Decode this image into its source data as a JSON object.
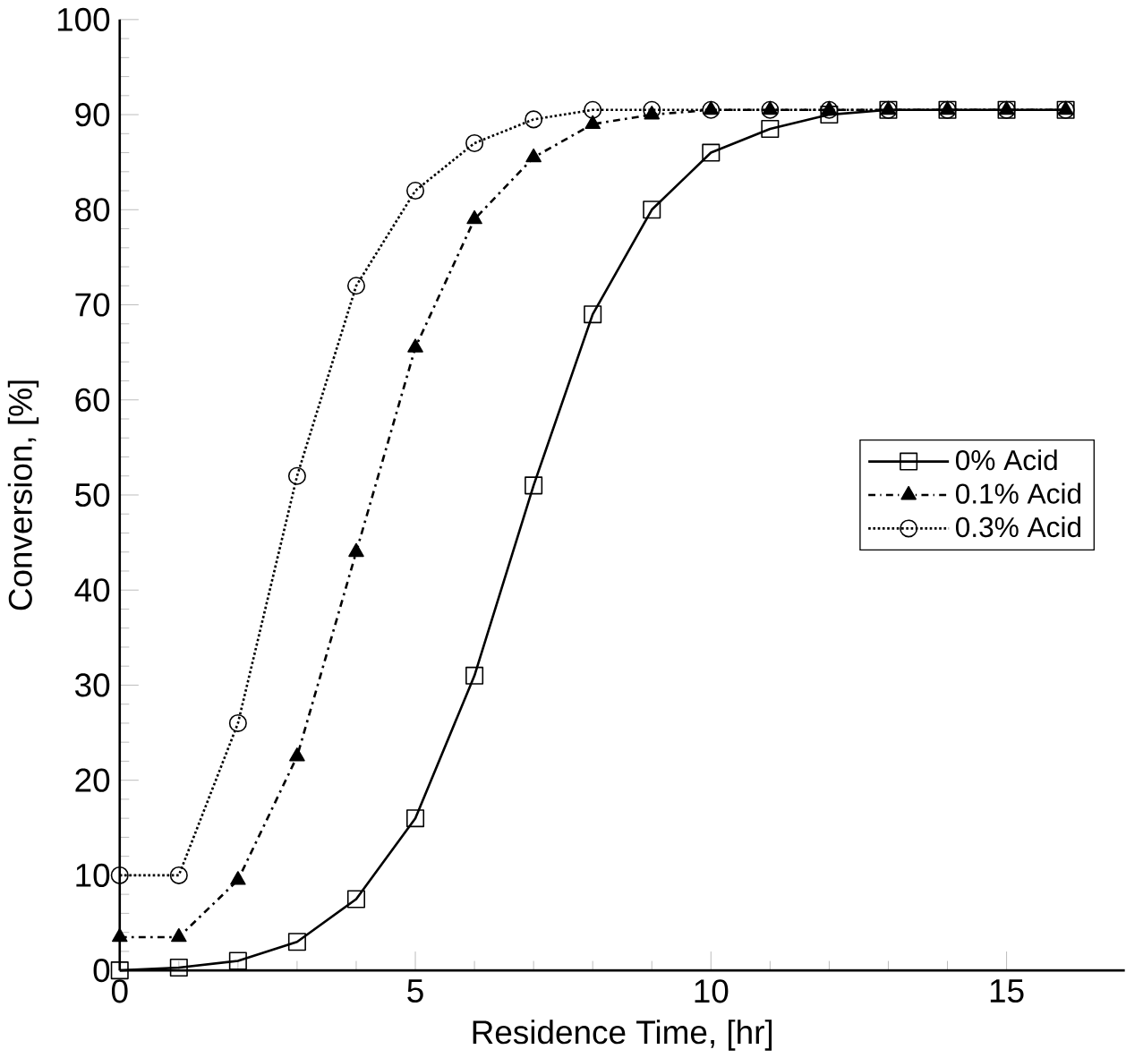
{
  "chart_data": {
    "type": "line",
    "xlabel": "Residence Time, [hr]",
    "ylabel": "Conversion, [%]",
    "x": [
      0,
      1,
      2,
      3,
      4,
      5,
      6,
      7,
      8,
      9,
      10,
      11,
      12,
      13,
      14,
      15,
      16
    ],
    "xlim": [
      0,
      17
    ],
    "xticks": [
      0,
      5,
      10,
      15
    ],
    "ylim": [
      0,
      100
    ],
    "yticks": [
      0,
      10,
      20,
      30,
      40,
      50,
      60,
      70,
      80,
      90,
      100
    ],
    "grid": false,
    "legend": "right",
    "series": [
      {
        "name": "0% Acid",
        "color": "#000000",
        "marker": "square",
        "line_style": "solid",
        "values": [
          0,
          0.3,
          1,
          3,
          7.5,
          16,
          31,
          51,
          69,
          80,
          86,
          88.5,
          90,
          90.5,
          90.5,
          90.5,
          90.5
        ]
      },
      {
        "name": "0.1% Acid",
        "color": "#000000",
        "marker": "triangle",
        "line_style": "dashdot",
        "values": [
          3.5,
          3.5,
          9.5,
          22.5,
          44,
          65.5,
          79,
          85.5,
          89,
          90,
          90.5,
          90.5,
          90.5,
          90.5,
          90.5,
          90.5,
          90.5
        ]
      },
      {
        "name": "0.3% Acid",
        "color": "#000000",
        "marker": "circle",
        "line_style": "dotted",
        "values": [
          10,
          10,
          26,
          52,
          72,
          82,
          87,
          89.5,
          90.5,
          90.5,
          90.5,
          90.5,
          90.5,
          90.5,
          90.5,
          90.5,
          90.5
        ]
      }
    ]
  }
}
